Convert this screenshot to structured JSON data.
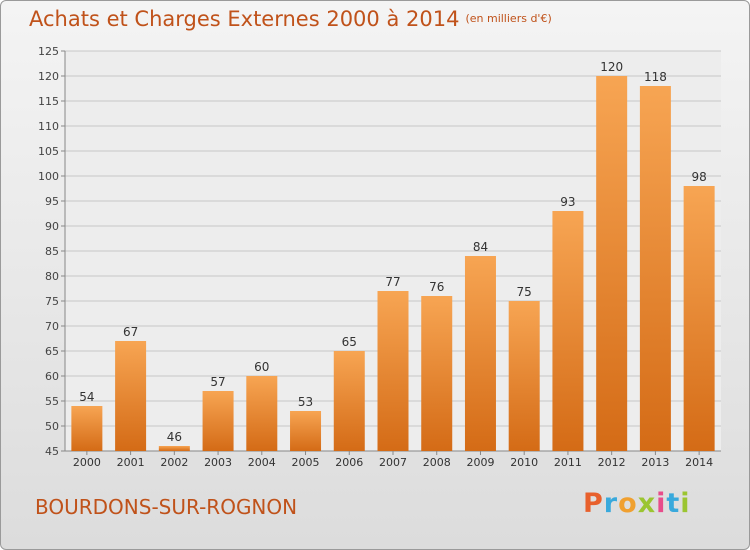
{
  "header": {
    "title": "Achats et Charges Externes 2000 à 2014",
    "unit": "(en milliers d'€)"
  },
  "footer": {
    "commune": "BOURDONS-SUR-ROGNON",
    "brand": "Proxiti"
  },
  "colors": {
    "accent": "#c0521a",
    "bar_top": "#f7a553",
    "bar_bottom": "#d46b16",
    "brand_letters": [
      "#e8602c",
      "#39a9dc",
      "#f0a030",
      "#9bc531",
      "#e84c8b",
      "#39a9dc",
      "#9bc531"
    ]
  },
  "chart_data": {
    "type": "bar",
    "title": "Achats et Charges Externes 2000 à 2014",
    "subtitle": "(en milliers d'€)",
    "categories": [
      "2000",
      "2001",
      "2002",
      "2003",
      "2004",
      "2005",
      "2006",
      "2007",
      "2008",
      "2009",
      "2010",
      "2011",
      "2012",
      "2013",
      "2014"
    ],
    "values": [
      54,
      67,
      46,
      57,
      60,
      53,
      65,
      77,
      76,
      84,
      75,
      93,
      120,
      118,
      98
    ],
    "ylim": [
      45,
      125
    ],
    "yticks": [
      45,
      50,
      55,
      60,
      65,
      70,
      75,
      80,
      85,
      90,
      95,
      100,
      105,
      110,
      115,
      120,
      125
    ],
    "grid": true,
    "data_labels": true
  }
}
